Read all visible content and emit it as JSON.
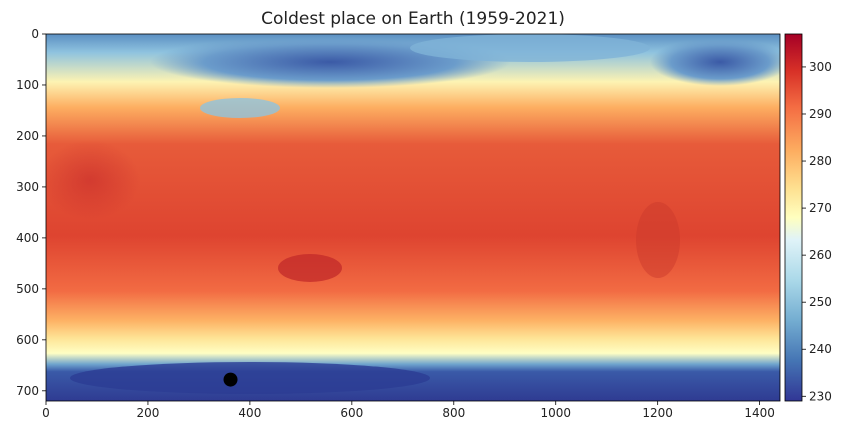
{
  "chart_data": {
    "type": "heatmap",
    "title": "Coldest place on Earth (1959-2021)",
    "xlabel": "",
    "ylabel": "",
    "x_range": [
      0,
      1440
    ],
    "y_range": [
      720,
      0
    ],
    "x_ticks": [
      "0",
      "200",
      "400",
      "600",
      "800",
      "1000",
      "1200",
      "1400"
    ],
    "y_ticks": [
      "0",
      "100",
      "200",
      "300",
      "400",
      "500",
      "600",
      "700"
    ],
    "colorbar": {
      "range": [
        229,
        307
      ],
      "ticks": [
        "230",
        "240",
        "250",
        "260",
        "270",
        "280",
        "290",
        "300"
      ],
      "colormap": "RdYlBu_r"
    },
    "marker": {
      "label": "coldest point",
      "x": 362,
      "y": 678,
      "color": "#000000"
    },
    "colors": {
      "cold": "#313695",
      "cool": "#74add1",
      "neutral": "#ffffbf",
      "warm": "#f46d43",
      "hot": "#a50026"
    }
  }
}
